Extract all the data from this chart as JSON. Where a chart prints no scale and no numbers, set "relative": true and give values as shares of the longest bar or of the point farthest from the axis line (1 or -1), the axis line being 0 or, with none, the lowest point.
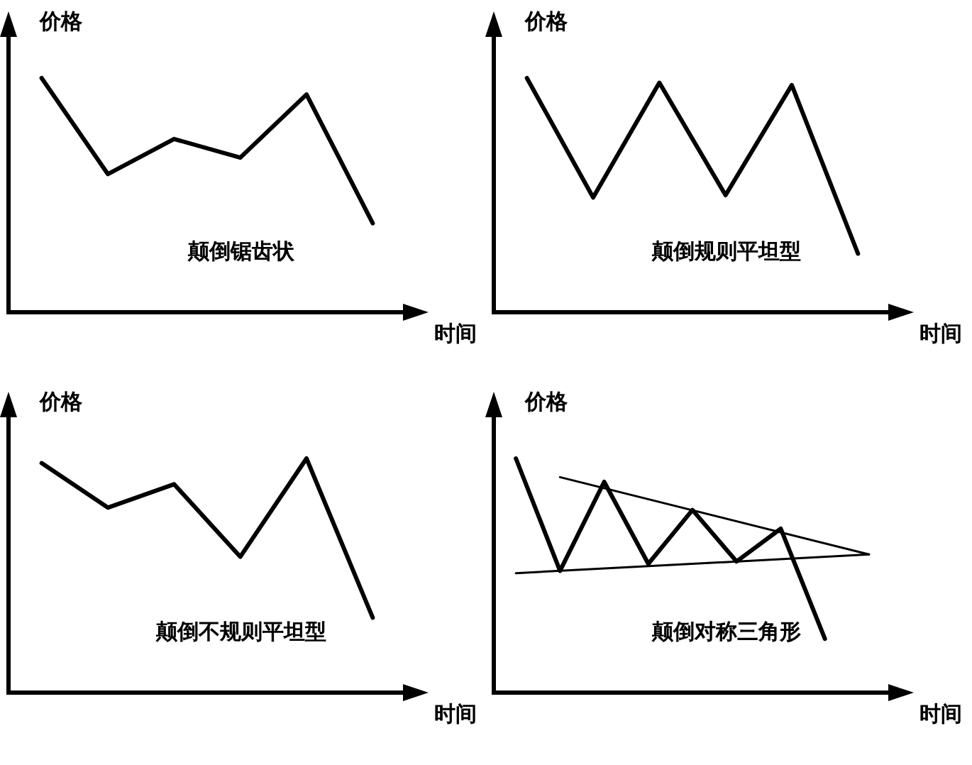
{
  "chart_data": [
    {
      "type": "line",
      "title": "颠倒锯齿状",
      "xlabel": "时间",
      "ylabel": "价格",
      "relative": true,
      "categories": [
        null,
        null,
        null,
        null,
        null,
        null
      ],
      "series": [
        {
          "color": "#000000",
          "values": [
            1,
            0.59,
            0.74,
            0.66,
            0.93,
            0.38
          ]
        }
      ]
    },
    {
      "type": "line",
      "title": "颠倒规则平坦型",
      "xlabel": "时间",
      "ylabel": "价格",
      "relative": true,
      "categories": [
        null,
        null,
        null,
        null,
        null,
        null
      ],
      "series": [
        {
          "color": "#000000",
          "values": [
            1,
            0.49,
            0.98,
            0.5,
            0.97,
            0.25
          ]
        }
      ]
    },
    {
      "type": "line",
      "title": "颠倒不规则平坦型",
      "xlabel": "时间",
      "ylabel": "价格",
      "relative": true,
      "categories": [
        null,
        null,
        null,
        null,
        null,
        null
      ],
      "series": [
        {
          "color": "#000000",
          "values": [
            0.98,
            0.79,
            0.89,
            0.58,
            1,
            0.32
          ]
        }
      ]
    },
    {
      "type": "line",
      "title": "颠倒对称三角形",
      "xlabel": "时间",
      "ylabel": "价格",
      "relative": true,
      "categories": [
        null,
        null,
        null,
        null,
        null,
        null,
        null,
        null,
        null
      ],
      "series": [
        {
          "color": "#000000",
          "values": [
            1,
            0.52,
            0.9,
            0.55,
            0.78,
            0.56,
            0.7,
            0.23,
            null
          ]
        },
        {
          "type": "line",
          "color": "#000000",
          "values": [
            null,
            0.92,
            null,
            null,
            null,
            null,
            null,
            null,
            0.59
          ]
        },
        {
          "type": "line",
          "color": "#000000",
          "values": [
            0.51,
            null,
            null,
            null,
            null,
            null,
            null,
            null,
            0.59
          ]
        }
      ]
    }
  ]
}
